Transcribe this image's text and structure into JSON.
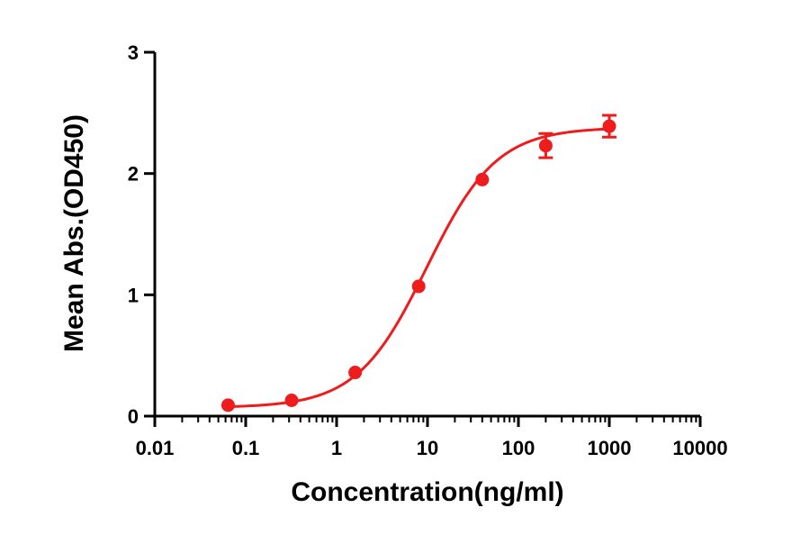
{
  "chart_data": {
    "type": "scatter",
    "xlabel": "Concentration(ng/ml)",
    "ylabel": "Mean Abs.(OD450)",
    "x_scale": "log",
    "xlim": [
      0.01,
      10000
    ],
    "ylim": [
      0,
      3
    ],
    "x_ticks": [
      0.01,
      0.1,
      1,
      10,
      100,
      1000,
      10000
    ],
    "x_tick_labels": [
      "0.01",
      "0.1",
      "1",
      "10",
      "100",
      "1000",
      "10000"
    ],
    "y_ticks": [
      0,
      1,
      2,
      3
    ],
    "y_tick_labels": [
      "0",
      "1",
      "2",
      "3"
    ],
    "grid": false,
    "color": "#ee1c1c",
    "points": [
      {
        "x": 0.064,
        "y": 0.09,
        "err": 0.0
      },
      {
        "x": 0.32,
        "y": 0.13,
        "err": 0.0
      },
      {
        "x": 1.6,
        "y": 0.36,
        "err": 0.0
      },
      {
        "x": 8.0,
        "y": 1.07,
        "err": 0.0
      },
      {
        "x": 40,
        "y": 1.95,
        "err": 0.0
      },
      {
        "x": 200,
        "y": 2.23,
        "err": 0.1
      },
      {
        "x": 1000,
        "y": 2.39,
        "err": 0.09
      }
    ],
    "fit": {
      "model": "4PL",
      "bottom": 0.07,
      "top": 2.38,
      "ec50": 9.8,
      "hill": 1.13
    }
  }
}
